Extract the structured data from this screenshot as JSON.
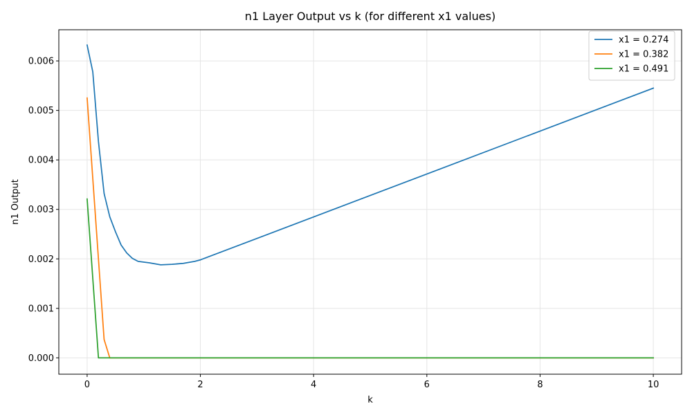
{
  "chart_data": {
    "type": "line",
    "title": "n1 Layer Output vs k (for different x1 values)",
    "xlabel": "k",
    "ylabel": "n1 Output",
    "xlim": [
      -0.5,
      10.5
    ],
    "ylim": [
      -0.00033,
      0.00663
    ],
    "xticks": [
      0,
      2,
      4,
      6,
      8,
      10
    ],
    "xtick_labels": [
      "0",
      "2",
      "4",
      "6",
      "8",
      "10"
    ],
    "yticks": [
      0.0,
      0.001,
      0.002,
      0.003,
      0.004,
      0.005,
      0.006
    ],
    "ytick_labels": [
      "0.000",
      "0.001",
      "0.002",
      "0.003",
      "0.004",
      "0.005",
      "0.006"
    ],
    "grid": true,
    "legend_position": "top-right",
    "series": [
      {
        "name": "x1 = 0.274",
        "color": "#1f77b4",
        "x": [
          0,
          0.1,
          0.2,
          0.3,
          0.4,
          0.5,
          0.6,
          0.7,
          0.8,
          0.9,
          1.1,
          1.3,
          1.5,
          1.7,
          1.9,
          2.0,
          10.0
        ],
        "y": [
          0.00632,
          0.00578,
          0.00437,
          0.00332,
          0.00285,
          0.00255,
          0.00228,
          0.00212,
          0.00201,
          0.00195,
          0.00192,
          0.00188,
          0.00189,
          0.00191,
          0.00195,
          0.00198,
          0.00545
        ]
      },
      {
        "name": "x1 = 0.382",
        "color": "#ff7f0e",
        "x": [
          0,
          0.3,
          0.4,
          10.0
        ],
        "y": [
          0.00525,
          0.00037,
          0.0,
          0.0
        ]
      },
      {
        "name": "x1 = 0.491",
        "color": "#2ca02c",
        "x": [
          0,
          0.2,
          10.0
        ],
        "y": [
          0.00321,
          0.0,
          0.0
        ]
      }
    ]
  }
}
